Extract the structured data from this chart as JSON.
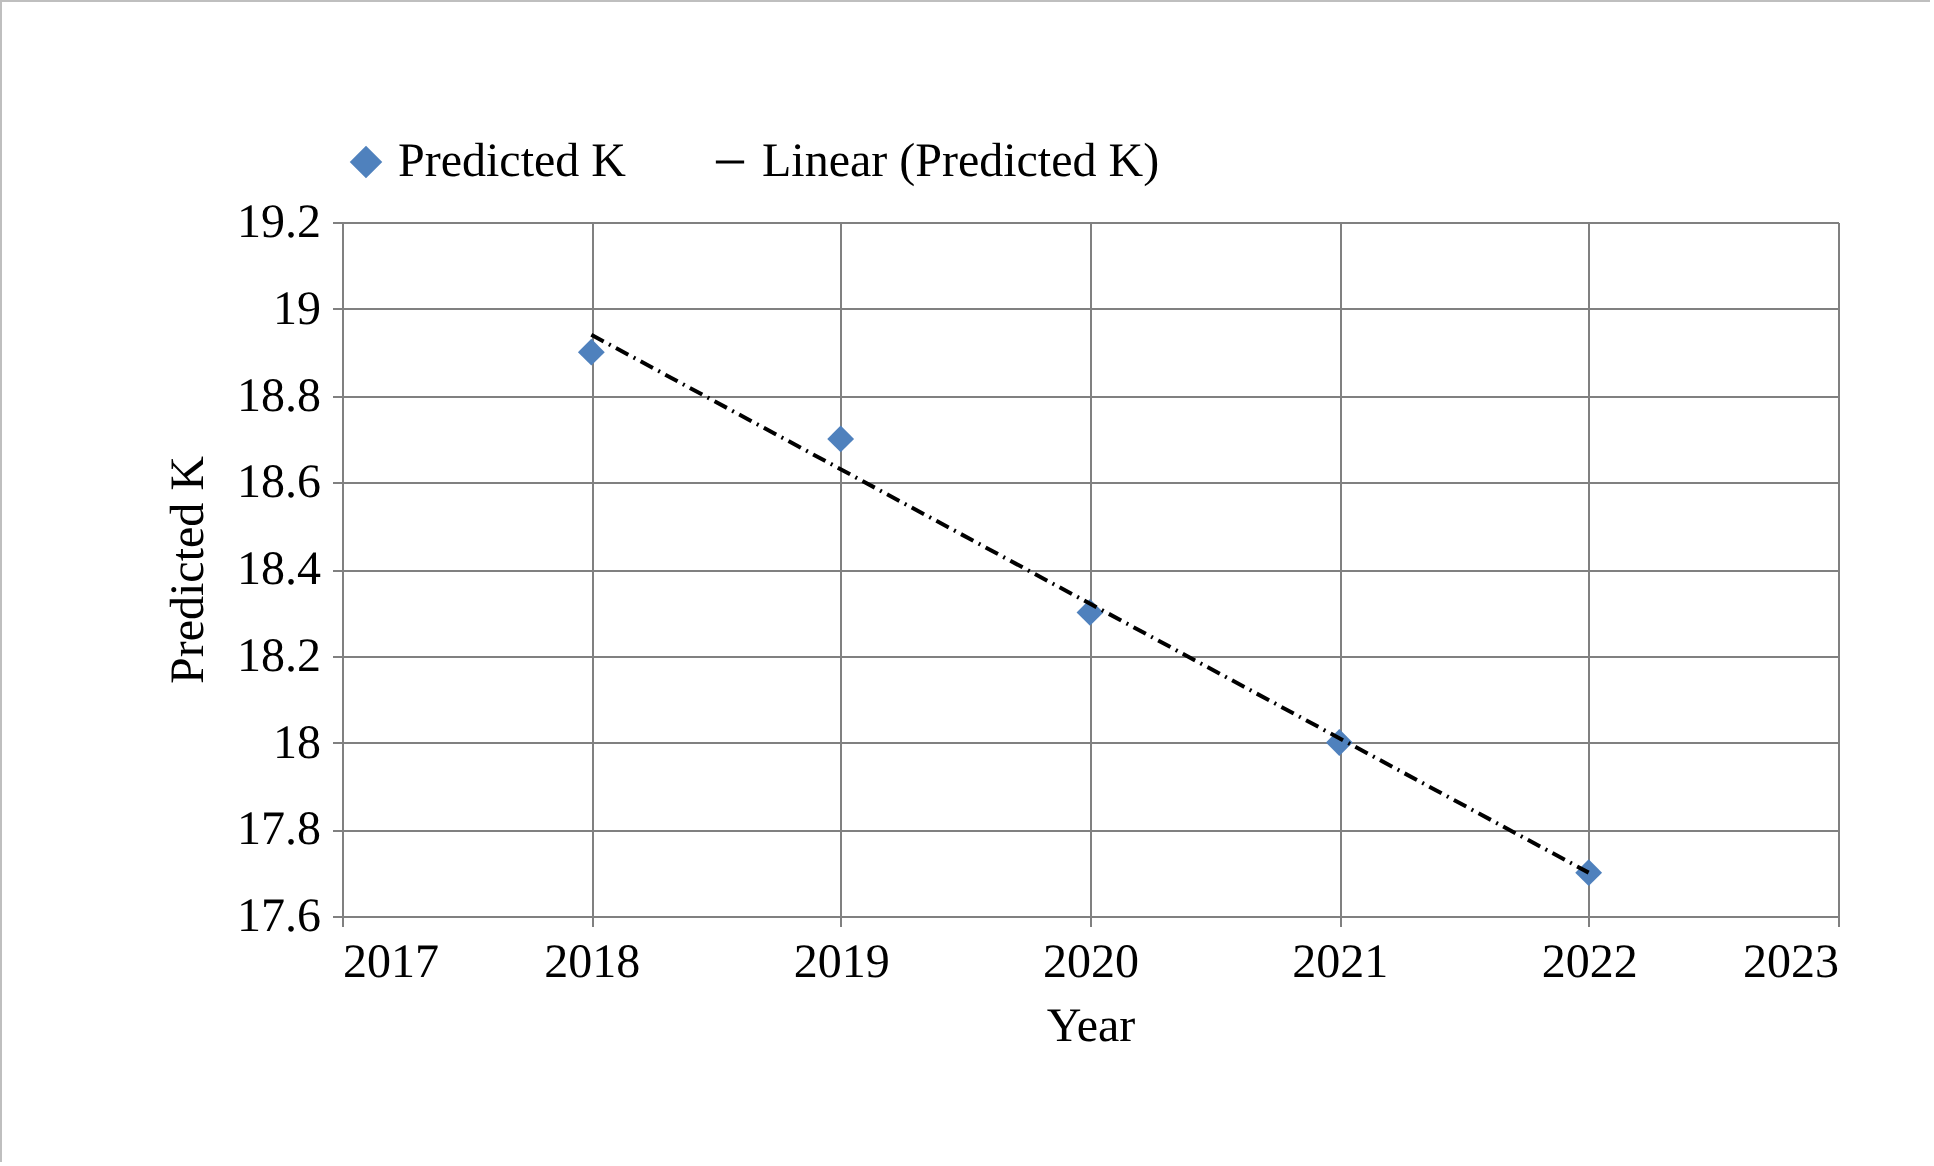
{
  "chart_data": {
    "type": "scatter",
    "xlabel": "Year",
    "ylabel": "Predicted K",
    "x": [
      2018,
      2019,
      2020,
      2021,
      2022
    ],
    "series": [
      {
        "name": "Predicted K",
        "color": "#4f81bd",
        "marker": "diamond",
        "values": [
          18.9,
          18.7,
          18.3,
          18.0,
          17.7
        ]
      },
      {
        "name": "Linear (Predicted K)",
        "type": "line",
        "color": "#000000",
        "marker": "none",
        "line_style": "dashed",
        "x": [
          2018,
          2022
        ],
        "values": [
          18.94,
          17.7
        ]
      }
    ],
    "xlim": [
      2017,
      2023
    ],
    "xticks": [
      2017,
      2018,
      2019,
      2020,
      2021,
      2022,
      2023
    ],
    "ylim": [
      17.6,
      19.2
    ],
    "yticks": [
      17.6,
      17.8,
      18,
      18.2,
      18.4,
      18.6,
      18.8,
      19,
      19.2
    ],
    "grid": true,
    "legend": "top"
  }
}
